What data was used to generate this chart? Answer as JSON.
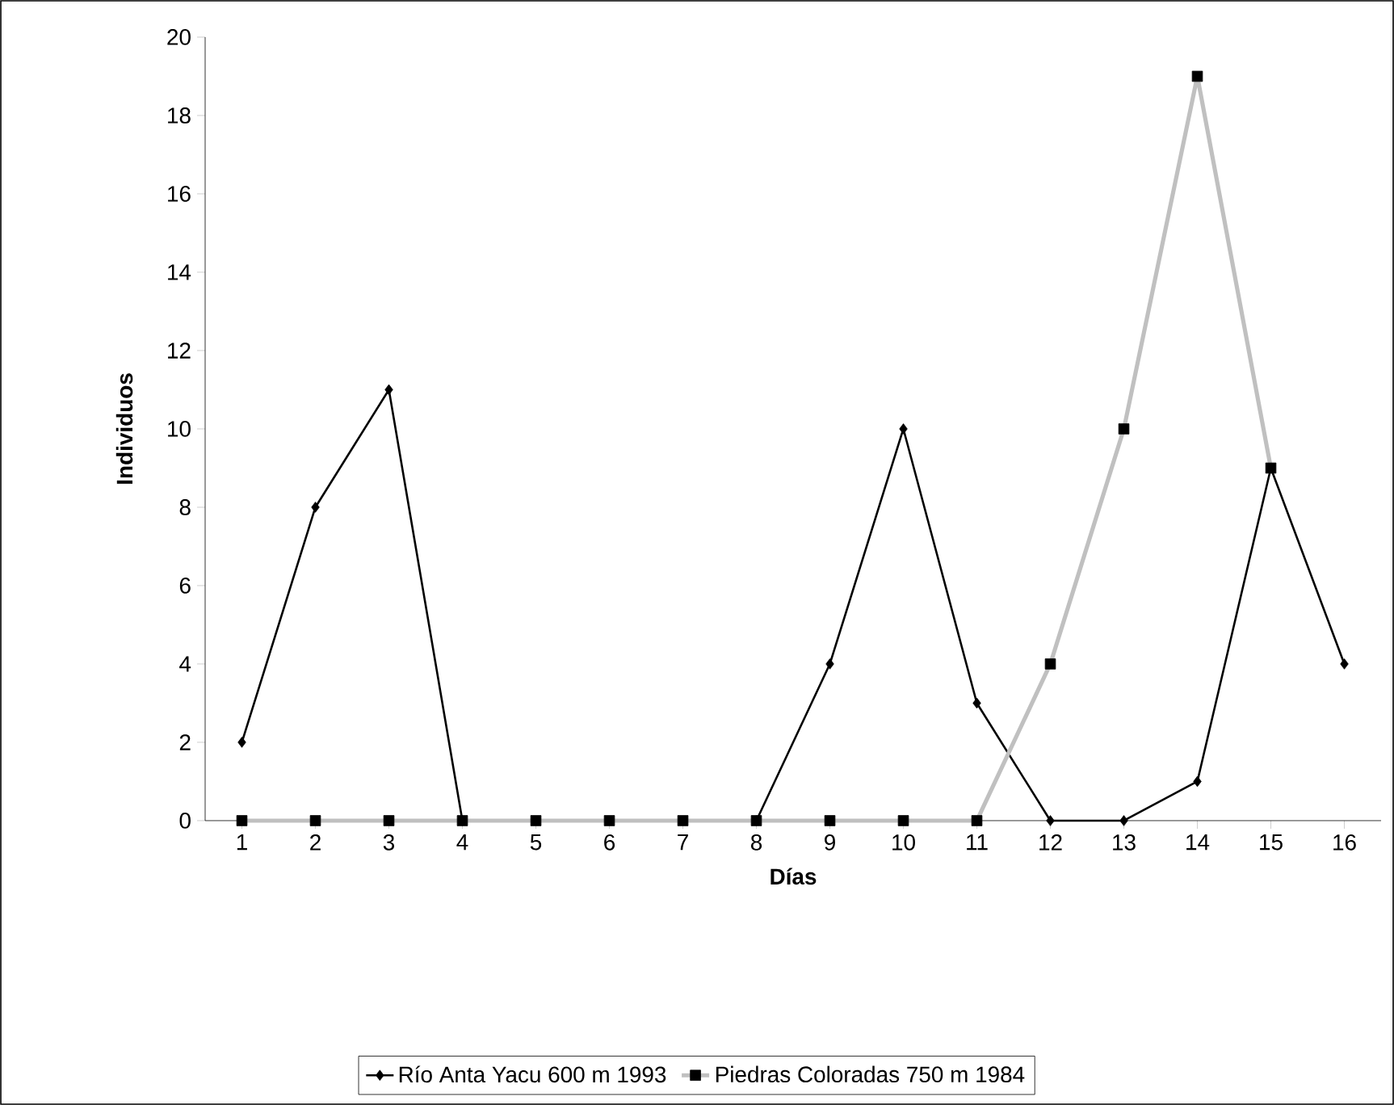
{
  "chart_data": {
    "type": "line",
    "xlabel": "Días",
    "ylabel": "Individuos",
    "categories": [
      "1",
      "2",
      "3",
      "4",
      "5",
      "6",
      "7",
      "8",
      "9",
      "10",
      "11",
      "12",
      "13",
      "14",
      "15",
      "16"
    ],
    "ylim": [
      0,
      20
    ],
    "yticks": [
      0,
      2,
      4,
      6,
      8,
      10,
      12,
      14,
      16,
      18,
      20
    ],
    "series": [
      {
        "name": "Río Anta Yacu  600 m 1993",
        "color": "#000000",
        "marker": "diamond",
        "values": [
          2,
          8,
          11,
          0,
          null,
          null,
          null,
          0,
          4,
          10,
          3,
          0,
          0,
          1,
          9,
          4
        ]
      },
      {
        "name": "Piedras Coloradas 750 m 1984",
        "color": "#c0c0c0",
        "marker": "square",
        "values": [
          0,
          0,
          0,
          0,
          0,
          0,
          0,
          0,
          0,
          0,
          0,
          4,
          10,
          19,
          9,
          null
        ]
      }
    ],
    "legend": "bottom",
    "grid": false,
    "line_style": "solid"
  }
}
